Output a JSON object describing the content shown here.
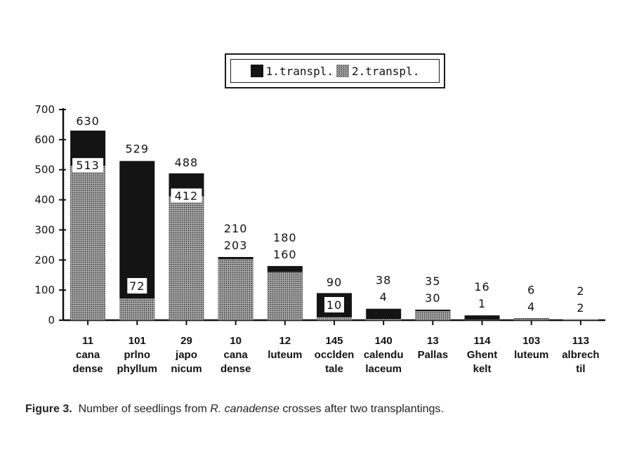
{
  "chart_data": {
    "type": "bar",
    "stacked": false,
    "yaxis": {
      "range": [
        0,
        700
      ],
      "ticks": [
        "0",
        "100",
        "200",
        "300",
        "400",
        "500",
        "600",
        "700"
      ]
    },
    "categories": [
      [
        "11",
        "cana",
        "dense"
      ],
      [
        "101",
        "prlno",
        "phyllum"
      ],
      [
        "29",
        "japo",
        "nicum"
      ],
      [
        "10",
        "cana",
        "dense"
      ],
      [
        "12",
        "luteum"
      ],
      [
        "145",
        "occlden",
        "tale"
      ],
      [
        "140",
        "calendu",
        "laceum"
      ],
      [
        "13",
        "Pallas"
      ],
      [
        "114",
        "Ghent",
        "kelt"
      ],
      [
        "103",
        "luteum"
      ],
      [
        "113",
        "albrech",
        "til"
      ]
    ],
    "series": [
      {
        "name": "1.transpl.",
        "values": [
          630,
          529,
          488,
          210,
          180,
          90,
          38,
          35,
          16,
          6,
          2
        ],
        "color": "#141414"
      },
      {
        "name": "2.transpl.",
        "values": [
          513,
          72,
          412,
          203,
          160,
          10,
          4,
          30,
          1,
          4,
          2
        ],
        "color": "#9a9a9a"
      }
    ],
    "value_labels": {
      "first": [
        "630",
        "529",
        "488",
        "210",
        "180",
        "90",
        "38",
        "35",
        "16",
        "6",
        "2"
      ],
      "second": [
        "513",
        "72",
        "412",
        "203",
        "160",
        "10",
        "4",
        "30",
        "1",
        "4",
        "2"
      ]
    },
    "legend_position": "top-center",
    "grid": false
  },
  "legend": {
    "label_1": "1.transpl.",
    "label_2": "2.transpl."
  },
  "caption": {
    "label": "Figure 3.",
    "pre": "Number of seedlings from",
    "species": "R. canadense",
    "post": "crosses after two transplantings."
  }
}
